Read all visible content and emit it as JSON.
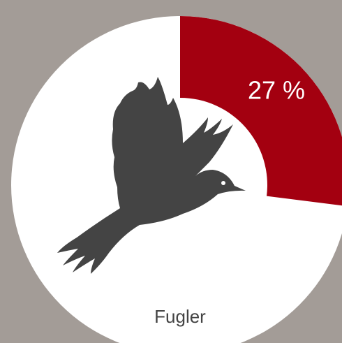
{
  "chart_data": {
    "type": "donut",
    "categories": [
      "Fugler"
    ],
    "values": [
      27
    ],
    "value_labels": [
      "27 %"
    ],
    "color": "#a30010"
  }
}
